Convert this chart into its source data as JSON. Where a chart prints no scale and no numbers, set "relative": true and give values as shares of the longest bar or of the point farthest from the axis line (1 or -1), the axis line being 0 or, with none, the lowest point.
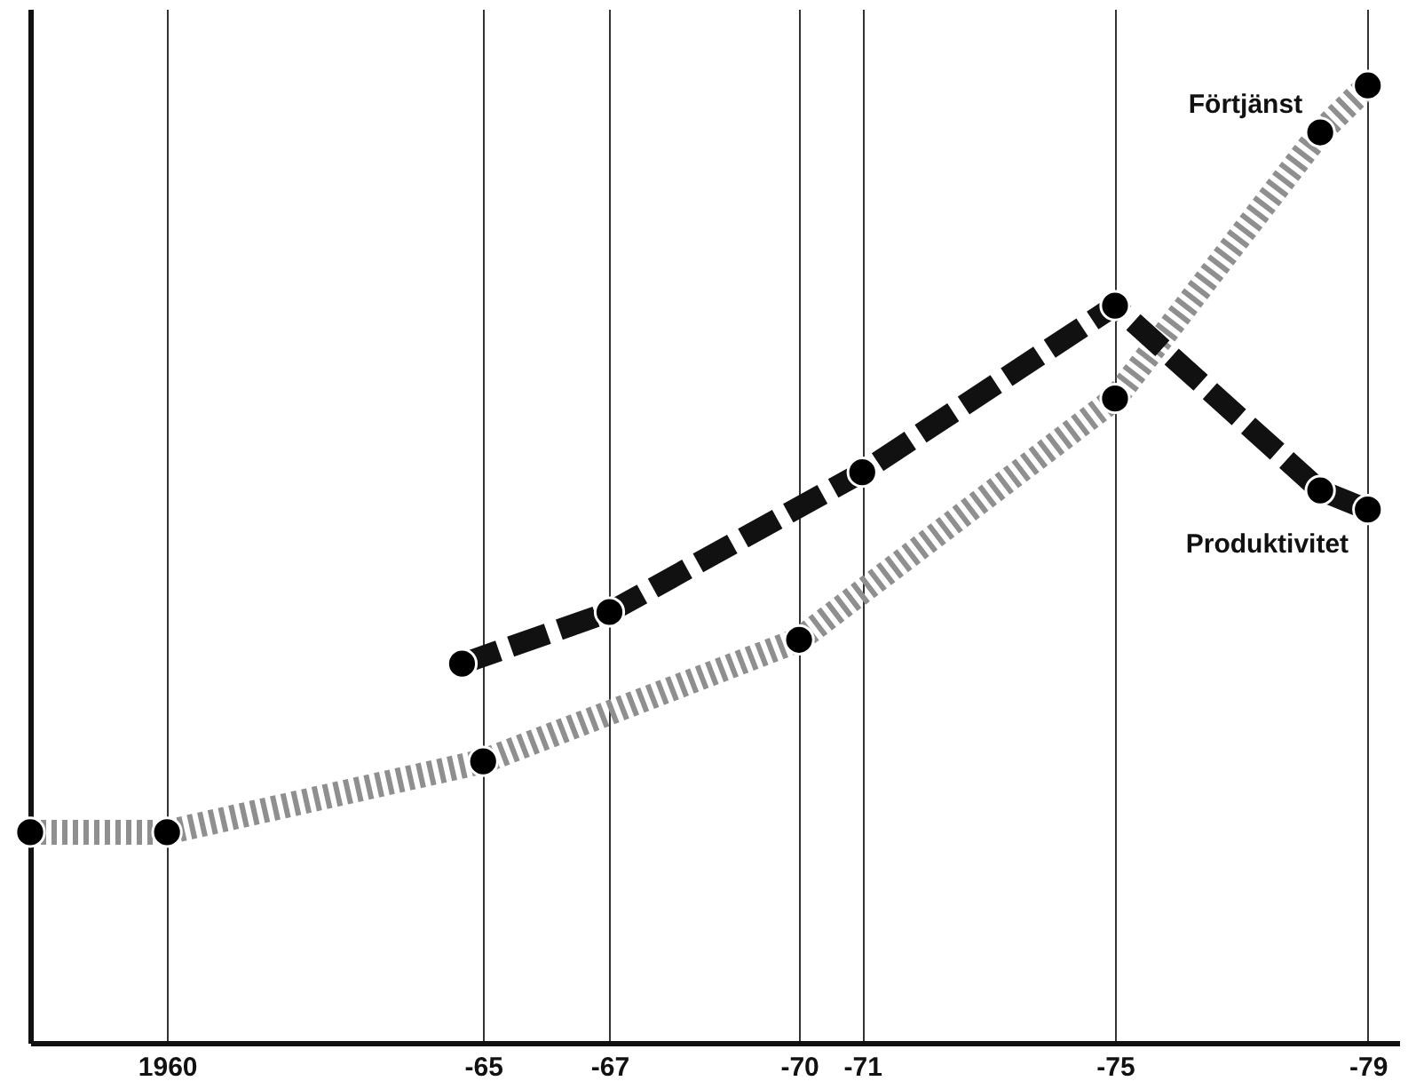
{
  "chart_data": {
    "type": "line",
    "relative": true,
    "xlim": [
      "1957-11",
      "1979-07"
    ],
    "xticks": [
      {
        "value": "1960",
        "label": "1960"
      },
      {
        "value": "1965",
        "label": "-65"
      },
      {
        "value": "1967",
        "label": "-67"
      },
      {
        "value": "1970",
        "label": "-70"
      },
      {
        "value": "1971",
        "label": "-71"
      },
      {
        "value": "1975",
        "label": "-75"
      },
      {
        "value": "1979",
        "label": "-79"
      }
    ],
    "series": [
      {
        "name": "Förtjänst",
        "color": "#8f8f8f",
        "line_style": "dotted",
        "x": [
          "1957-11",
          "1960",
          "1965",
          "1970",
          "1975",
          "1978-04",
          "1979"
        ],
        "values": [
          0.22,
          0.22,
          0.294,
          0.421,
          0.673,
          0.951,
          1
        ]
      },
      {
        "name": "Produktivitet",
        "color": "#111111",
        "line_style": "dashed",
        "x": [
          "1964-09",
          "1967",
          "1971",
          "1975",
          "1978-04",
          "1979"
        ],
        "values": [
          0.396,
          0.45,
          0.596,
          0.77,
          0.577,
          0.557
        ]
      }
    ],
    "marker": "circle",
    "grid": "x",
    "legend": false,
    "tick_labels": "x"
  }
}
